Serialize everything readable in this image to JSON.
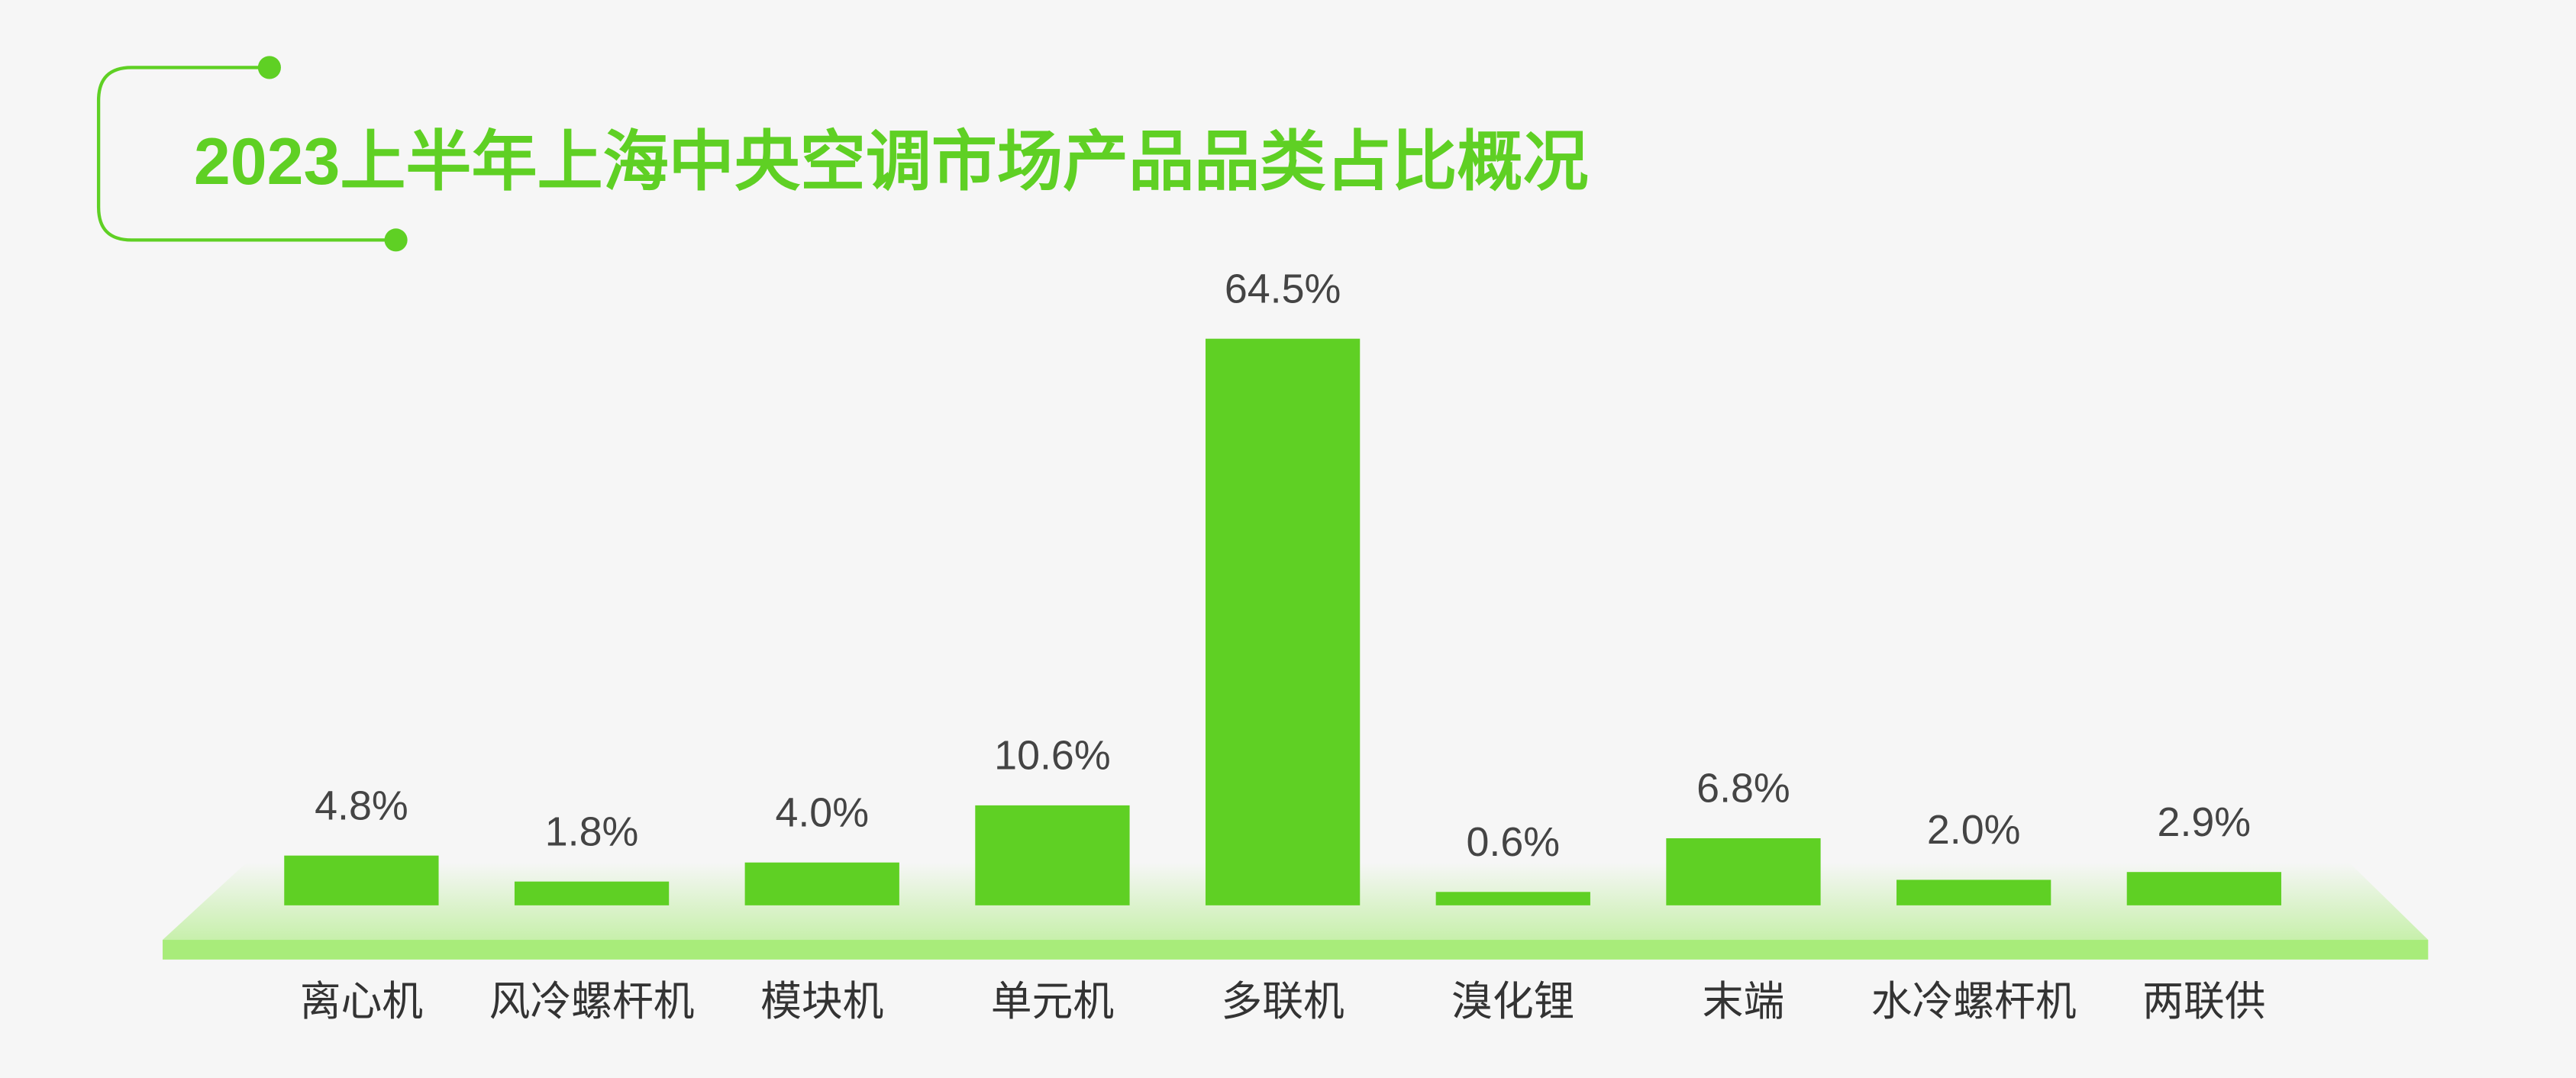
{
  "chart_data": {
    "type": "bar",
    "title": "2023上半年上海中央空调市场产品品类占比概况",
    "categories": [
      "离心机",
      "风冷螺杆机",
      "模块机",
      "单元机",
      "多联机",
      "溴化锂",
      "末端",
      "水冷螺杆机",
      "两联供"
    ],
    "values": [
      4.8,
      1.8,
      4.0,
      10.6,
      64.5,
      0.6,
      6.8,
      2.0,
      2.9
    ],
    "value_labels": [
      "4.8%",
      "1.8%",
      "4.0%",
      "10.6%",
      "64.5%",
      "0.6%",
      "6.8%",
      "2.0%",
      "2.9%"
    ],
    "color": "#5fd024"
  }
}
